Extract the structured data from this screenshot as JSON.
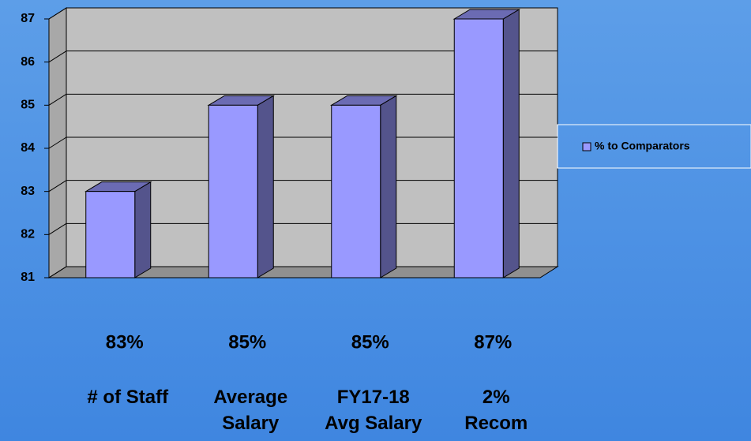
{
  "chart_data": {
    "type": "bar3d",
    "categories": [
      "# of Staff",
      "Average\nSalary",
      "FY17-18\nAvg Salary",
      "2%\nRecom"
    ],
    "series": [
      {
        "name": "% to Comparators",
        "color": "#9999ff",
        "values": [
          83,
          85,
          85,
          87
        ],
        "value_labels": [
          "83%",
          "85%",
          "85%",
          "87%"
        ]
      }
    ],
    "ylim": [
      81,
      87
    ],
    "yticks": [
      81,
      82,
      83,
      84,
      85,
      86,
      87
    ],
    "grid": true,
    "legend": "right"
  }
}
